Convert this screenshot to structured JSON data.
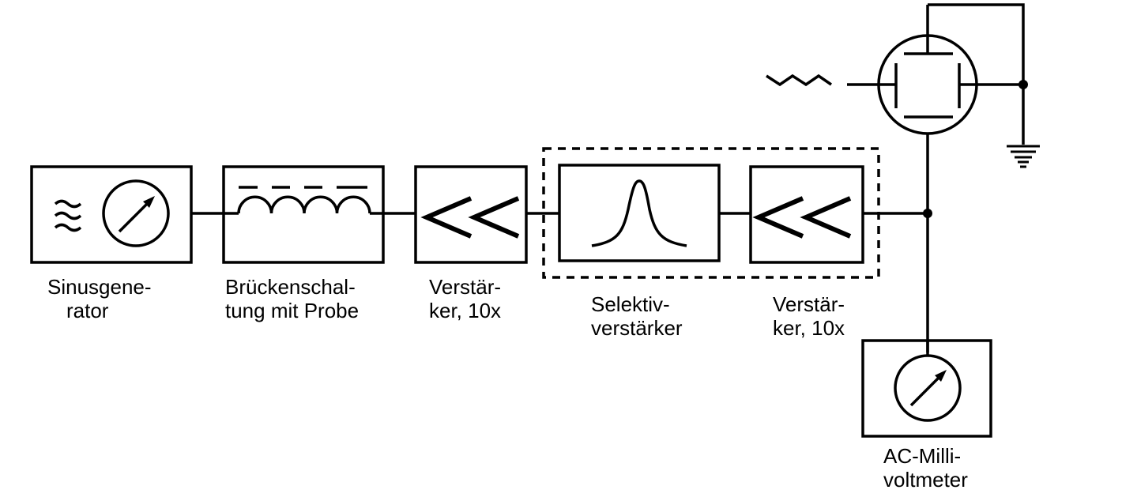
{
  "blocks": {
    "sine_generator": {
      "label": [
        "Sinusgene-",
        "rator"
      ],
      "icon": "sine-wave-symbol"
    },
    "bridge": {
      "label": [
        "Brückenschal-",
        "tung mit Probe"
      ],
      "icon": "inductor-coil-symbol"
    },
    "amplifier_1": {
      "label": [
        "Verstär-",
        "ker, 10x"
      ],
      "icon": "amplifier-chevrons"
    },
    "selective_amplifier": {
      "label": [
        "Selektiv-",
        "verstärker"
      ],
      "icon": "resonance-peak"
    },
    "amplifier_2": {
      "label": [
        "Verstär-",
        "ker, 10x"
      ],
      "icon": "amplifier-chevrons"
    },
    "ac_millivoltmeter": {
      "label": [
        "AC-Milli-",
        "voltmeter"
      ],
      "icon": "meter-dial"
    }
  },
  "extra_symbols": [
    "electron-tube",
    "signal-zigzag",
    "ground-symbol"
  ],
  "colors": {
    "stroke": "#000000",
    "background": "#ffffff"
  }
}
